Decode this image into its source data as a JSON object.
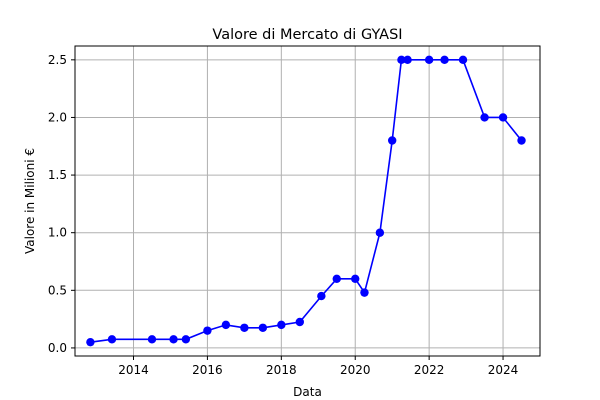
{
  "chart_data": {
    "type": "line",
    "title": "Valore di Mercato di GYASI",
    "xlabel": "Data",
    "ylabel": "Valore in Milioni €",
    "x_ticks": [
      "2014",
      "2016",
      "2018",
      "2020",
      "2022",
      "2024"
    ],
    "y_ticks": [
      "0.0",
      "0.5",
      "1.0",
      "1.5",
      "2.0",
      "2.5"
    ],
    "xlim": [
      "2012-06",
      "2025-01"
    ],
    "ylim": [
      -0.07,
      2.62
    ],
    "grid": true,
    "marker": "circle",
    "colors": {
      "line": "#0000ff",
      "grid": "#b0b0b0"
    },
    "series": [
      {
        "points": [
          {
            "x": "2012-11",
            "y": 0.05
          },
          {
            "x": "2013-06",
            "y": 0.075
          },
          {
            "x": "2014-07",
            "y": 0.075
          },
          {
            "x": "2015-02",
            "y": 0.075
          },
          {
            "x": "2015-06",
            "y": 0.075
          },
          {
            "x": "2016-01",
            "y": 0.15
          },
          {
            "x": "2016-07",
            "y": 0.2
          },
          {
            "x": "2017-01",
            "y": 0.175
          },
          {
            "x": "2017-07",
            "y": 0.175
          },
          {
            "x": "2018-01",
            "y": 0.2
          },
          {
            "x": "2018-07",
            "y": 0.225
          },
          {
            "x": "2019-02",
            "y": 0.45
          },
          {
            "x": "2019-07",
            "y": 0.6
          },
          {
            "x": "2020-01",
            "y": 0.6
          },
          {
            "x": "2020-04",
            "y": 0.48
          },
          {
            "x": "2020-09",
            "y": 1.0
          },
          {
            "x": "2021-01",
            "y": 1.8
          },
          {
            "x": "2021-04",
            "y": 2.5
          },
          {
            "x": "2021-06",
            "y": 2.5
          },
          {
            "x": "2022-01",
            "y": 2.5
          },
          {
            "x": "2022-06",
            "y": 2.5
          },
          {
            "x": "2022-12",
            "y": 2.5
          },
          {
            "x": "2023-07",
            "y": 2.0
          },
          {
            "x": "2024-01",
            "y": 2.0
          },
          {
            "x": "2024-07",
            "y": 1.8
          }
        ]
      }
    ]
  }
}
